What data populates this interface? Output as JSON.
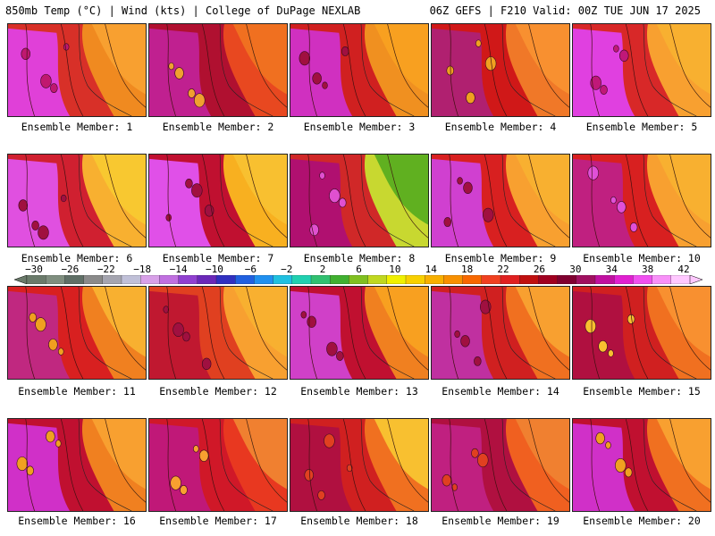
{
  "header": {
    "left_title": "850mb Temp (°C) | Wind (kts) | College of DuPage NEXLAB",
    "right_title": "06Z GEFS | F210 Valid: 00Z TUE JUN 17 2025"
  },
  "panels": [
    {
      "label": "Ensemble Member: 1"
    },
    {
      "label": "Ensemble Member: 2"
    },
    {
      "label": "Ensemble Member: 3"
    },
    {
      "label": "Ensemble Member: 4"
    },
    {
      "label": "Ensemble Member: 5"
    },
    {
      "label": "Ensemble Member: 6"
    },
    {
      "label": "Ensemble Member: 7"
    },
    {
      "label": "Ensemble Member: 8"
    },
    {
      "label": "Ensemble Member: 9"
    },
    {
      "label": "Ensemble Member: 10"
    },
    {
      "label": "Ensemble Member: 11"
    },
    {
      "label": "Ensemble Member: 12"
    },
    {
      "label": "Ensemble Member: 13"
    },
    {
      "label": "Ensemble Member: 14"
    },
    {
      "label": "Ensemble Member: 15"
    },
    {
      "label": "Ensemble Member: 16"
    },
    {
      "label": "Ensemble Member: 17"
    },
    {
      "label": "Ensemble Member: 18"
    },
    {
      "label": "Ensemble Member: 19"
    },
    {
      "label": "Ensemble Member: 20"
    }
  ],
  "colorbar": {
    "tick_labels": [
      "−30",
      "−26",
      "−22",
      "−18",
      "−14",
      "−10",
      "−6",
      "−2",
      "2",
      "6",
      "10",
      "14",
      "18",
      "22",
      "26",
      "30",
      "34",
      "38",
      "42"
    ],
    "colors": [
      "#6a7a6a",
      "#7f8e7f",
      "#5f6f66",
      "#8a8a8a",
      "#a5a5b0",
      "#c0c0d8",
      "#d8a0e8",
      "#c070e0",
      "#9040d0",
      "#6a28b8",
      "#3030c0",
      "#2060e0",
      "#2090f0",
      "#20c0e0",
      "#20d0b0",
      "#30c070",
      "#40b030",
      "#80c020",
      "#c0d820",
      "#f0f000",
      "#f8d000",
      "#f8b000",
      "#f89000",
      "#f86800",
      "#f04020",
      "#e02020",
      "#c01010",
      "#a00020",
      "#800030",
      "#a01060",
      "#c010a0",
      "#e020d0",
      "#f050f0",
      "#f890f8",
      "#ffc8ff"
    ]
  },
  "panel_styles": [
    {
      "base": "#f08a20",
      "west": "#e040d8",
      "mid": "#d83028",
      "east": "#f8a030",
      "hot": "#c01870"
    },
    {
      "base": "#e84820",
      "west": "#c02090",
      "mid": "#b01030",
      "east": "#f07020",
      "hot": "#f0a030"
    },
    {
      "base": "#f09020",
      "west": "#d030c0",
      "mid": "#d02020",
      "east": "#f8a020",
      "hot": "#a01040"
    },
    {
      "base": "#f07828",
      "west": "#b02070",
      "mid": "#d01818",
      "east": "#f89030",
      "hot": "#f0a020"
    },
    {
      "base": "#f8a030",
      "west": "#e040e0",
      "mid": "#d82828",
      "east": "#f8b030",
      "hot": "#c01878"
    },
    {
      "base": "#f8b030",
      "west": "#e050e0",
      "mid": "#d02030",
      "east": "#f8c830",
      "hot": "#a01040"
    },
    {
      "base": "#f8b020",
      "west": "#e050e8",
      "mid": "#c01030",
      "east": "#f8c030",
      "hot": "#a01040"
    },
    {
      "base": "#c8d830",
      "west": "#b01070",
      "mid": "#d02828",
      "east": "#60b020",
      "hot": "#e050d0"
    },
    {
      "base": "#f8a030",
      "west": "#d040d0",
      "mid": "#d82020",
      "east": "#f8b030",
      "hot": "#a01040"
    },
    {
      "base": "#f8a030",
      "west": "#c02080",
      "mid": "#d82020",
      "east": "#f8b030",
      "hot": "#e050d8"
    },
    {
      "base": "#f08020",
      "west": "#c02880",
      "mid": "#d82020",
      "east": "#f8b030",
      "hot": "#f0a020"
    },
    {
      "base": "#f8a030",
      "west": "#c01830",
      "mid": "#e04020",
      "east": "#f8b030",
      "hot": "#a01040"
    },
    {
      "base": "#f08020",
      "west": "#d040c8",
      "mid": "#c01030",
      "east": "#f8a020",
      "hot": "#a01040"
    },
    {
      "base": "#f07020",
      "west": "#c030a0",
      "mid": "#d02020",
      "east": "#f8a030",
      "hot": "#a01040"
    },
    {
      "base": "#f07020",
      "west": "#b01040",
      "mid": "#d02020",
      "east": "#f89030",
      "hot": "#f8c030"
    },
    {
      "base": "#f08020",
      "west": "#d030c8",
      "mid": "#c01030",
      "east": "#f8a030",
      "hot": "#f0a020"
    },
    {
      "base": "#e83820",
      "west": "#c01878",
      "mid": "#d01828",
      "east": "#f08030",
      "hot": "#f8a030"
    },
    {
      "base": "#f07020",
      "west": "#b01040",
      "mid": "#d02020",
      "east": "#f8c030",
      "hot": "#e04020"
    },
    {
      "base": "#f06020",
      "west": "#c02080",
      "mid": "#b01040",
      "east": "#f08030",
      "hot": "#e04020"
    },
    {
      "base": "#f07020",
      "west": "#d030c8",
      "mid": "#c01030",
      "east": "#f8a030",
      "hot": "#f0a020"
    }
  ]
}
